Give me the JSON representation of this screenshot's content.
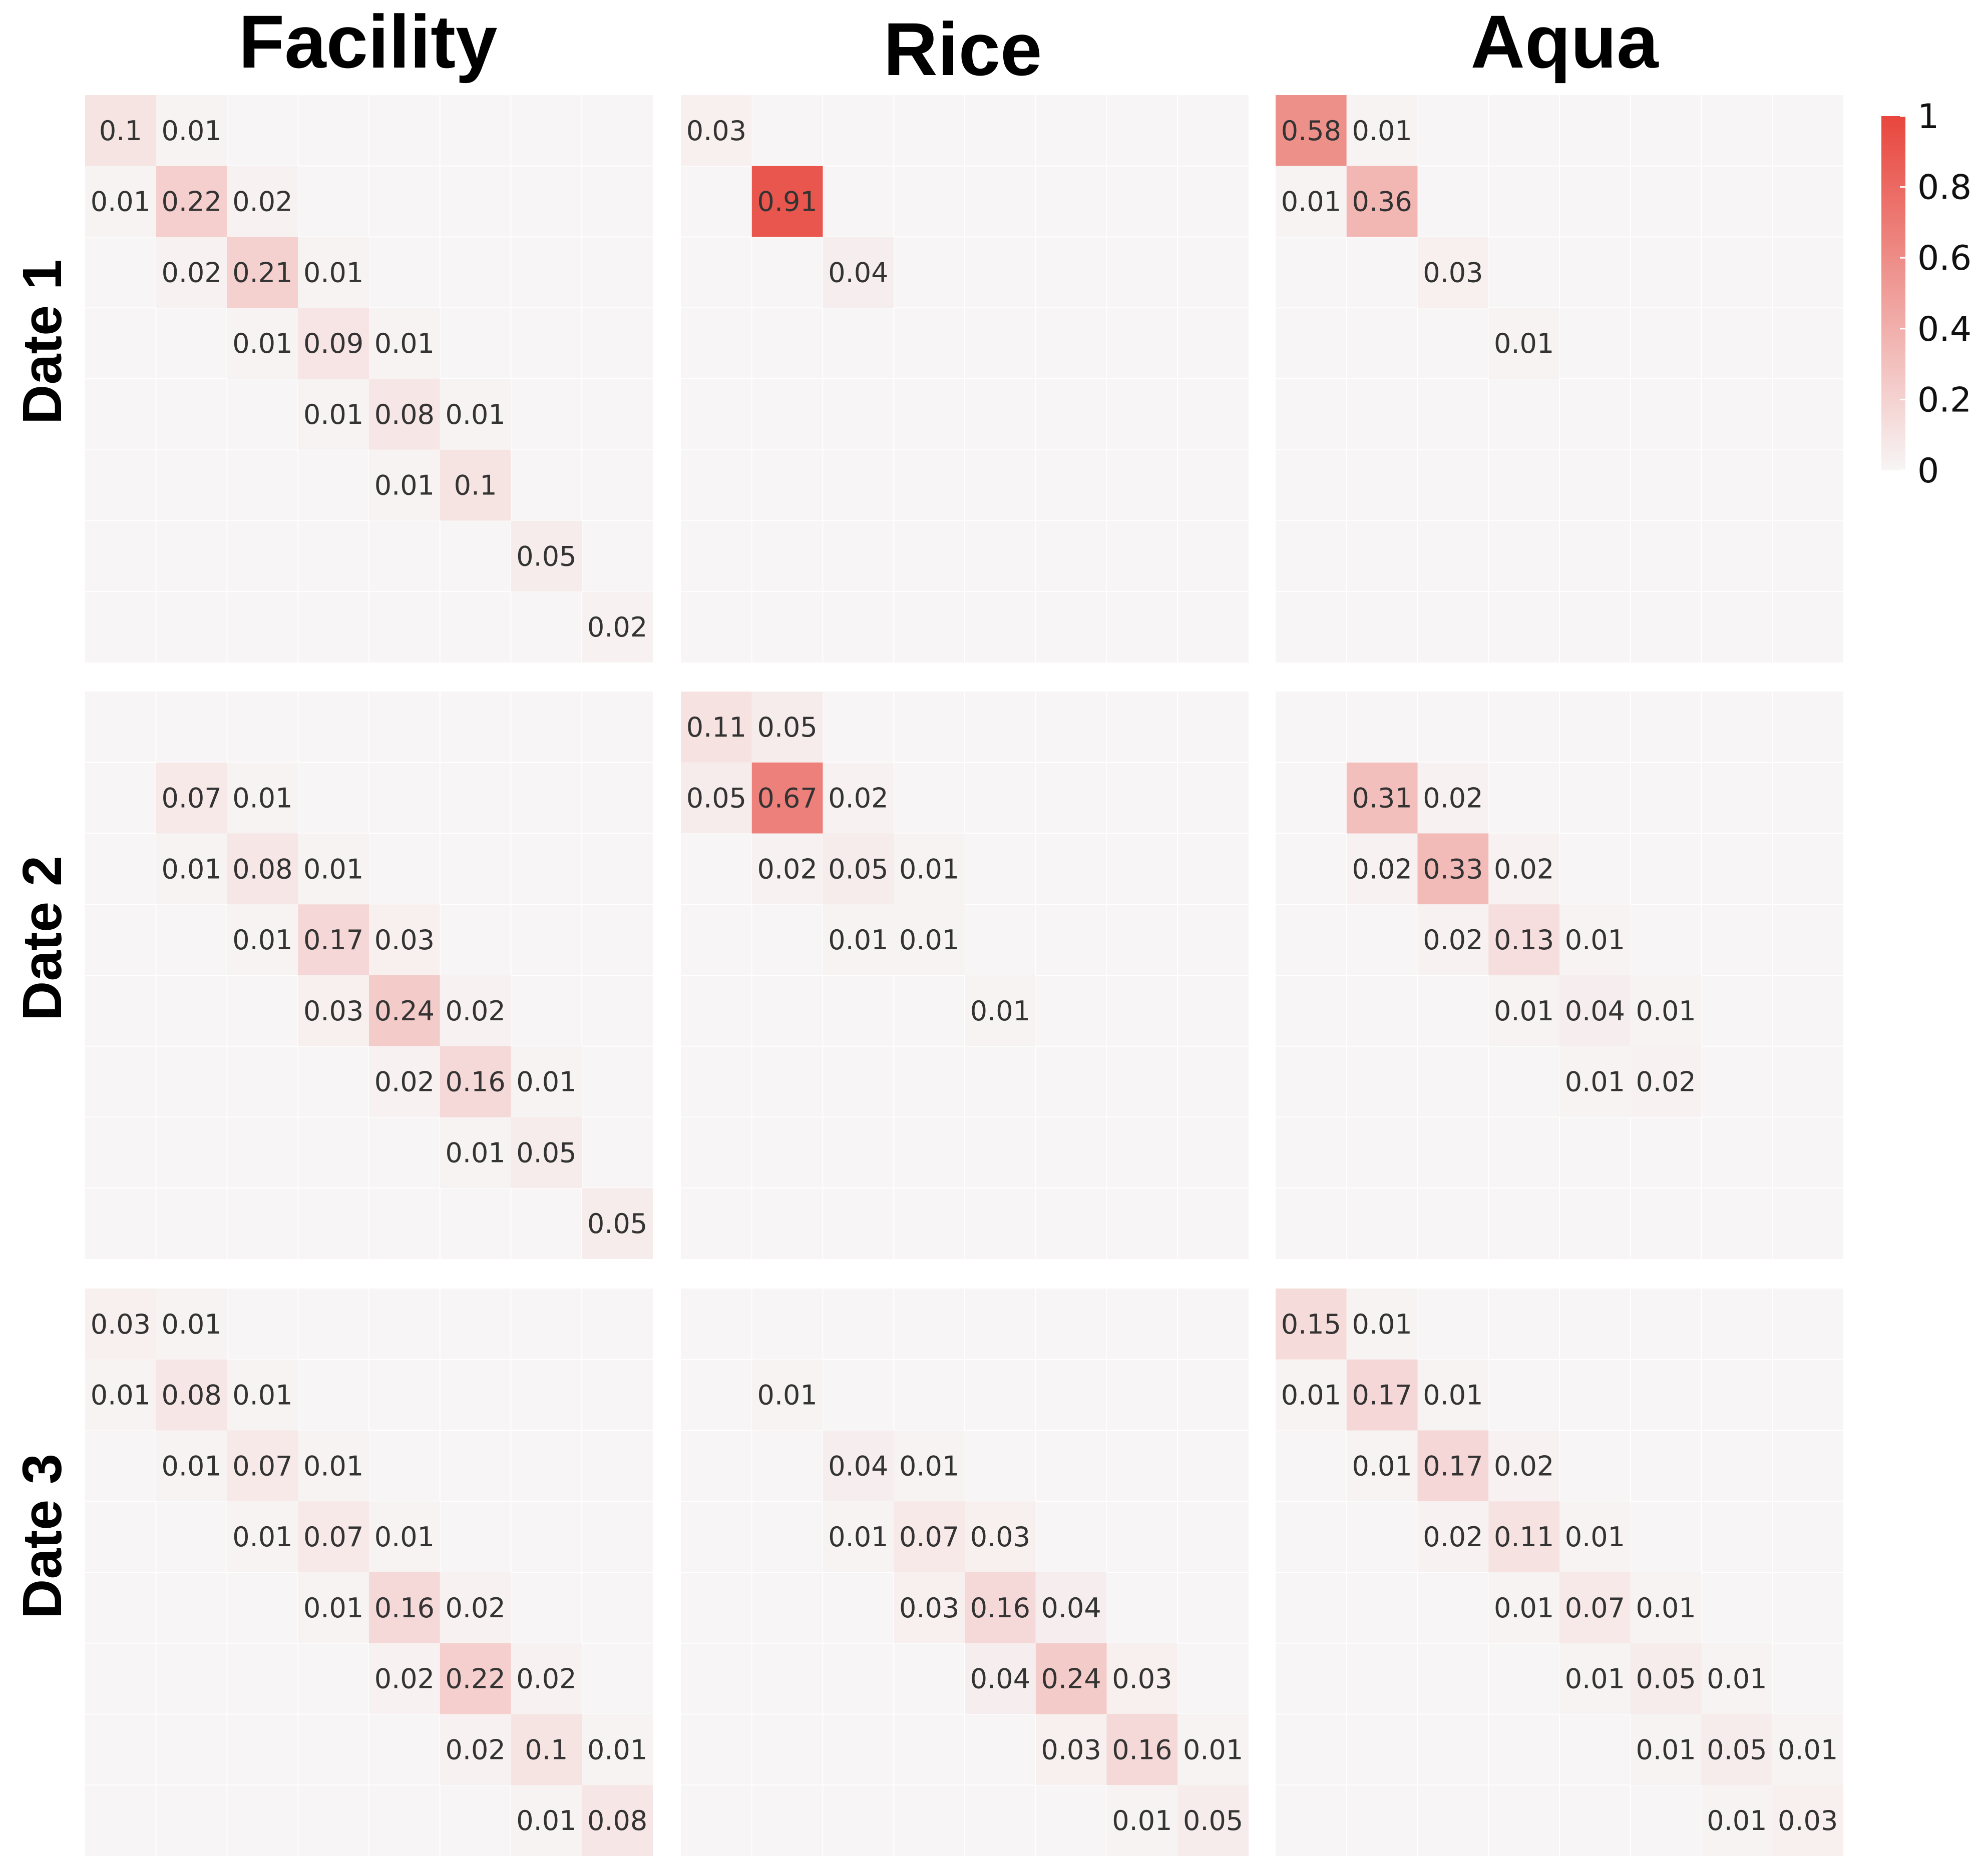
{
  "chart_data": {
    "type": "heatmap",
    "col_titles": [
      "Facility",
      "Rice",
      "Aqua"
    ],
    "row_titles": [
      "Date 1",
      "Date 2",
      "Date 3"
    ],
    "grid_size": 8,
    "color_scale": {
      "min": 0,
      "max": 1,
      "low_color": "#f7f5f5",
      "high_color": "#e8463d"
    },
    "legend": {
      "ticks": [
        "1",
        "0.8",
        "0.6",
        "0.4",
        "0.2",
        "0"
      ],
      "values": [
        1,
        0.8,
        0.6,
        0.4,
        0.2,
        0
      ],
      "placement": "top-right"
    },
    "panels": [
      {
        "row": 0,
        "col": 0,
        "cells": [
          {
            "r": 0,
            "c": 0,
            "v": 0.1,
            "label": "0.1"
          },
          {
            "r": 0,
            "c": 1,
            "v": 0.01,
            "label": "0.01"
          },
          {
            "r": 1,
            "c": 0,
            "v": 0.01,
            "label": "0.01"
          },
          {
            "r": 1,
            "c": 1,
            "v": 0.22,
            "label": "0.22"
          },
          {
            "r": 1,
            "c": 2,
            "v": 0.02,
            "label": "0.02"
          },
          {
            "r": 2,
            "c": 1,
            "v": 0.02,
            "label": "0.02"
          },
          {
            "r": 2,
            "c": 2,
            "v": 0.21,
            "label": "0.21"
          },
          {
            "r": 2,
            "c": 3,
            "v": 0.01,
            "label": "0.01"
          },
          {
            "r": 3,
            "c": 2,
            "v": 0.01,
            "label": "0.01"
          },
          {
            "r": 3,
            "c": 3,
            "v": 0.09,
            "label": "0.09"
          },
          {
            "r": 3,
            "c": 4,
            "v": 0.01,
            "label": "0.01"
          },
          {
            "r": 4,
            "c": 3,
            "v": 0.01,
            "label": "0.01"
          },
          {
            "r": 4,
            "c": 4,
            "v": 0.08,
            "label": "0.08"
          },
          {
            "r": 4,
            "c": 5,
            "v": 0.01,
            "label": "0.01"
          },
          {
            "r": 5,
            "c": 4,
            "v": 0.01,
            "label": "0.01"
          },
          {
            "r": 5,
            "c": 5,
            "v": 0.1,
            "label": "0.1"
          },
          {
            "r": 6,
            "c": 6,
            "v": 0.05,
            "label": "0.05"
          },
          {
            "r": 7,
            "c": 7,
            "v": 0.02,
            "label": "0.02"
          }
        ]
      },
      {
        "row": 0,
        "col": 1,
        "cells": [
          {
            "r": 0,
            "c": 0,
            "v": 0.03,
            "label": "0.03"
          },
          {
            "r": 1,
            "c": 1,
            "v": 0.91,
            "label": "0.91"
          },
          {
            "r": 2,
            "c": 2,
            "v": 0.04,
            "label": "0.04"
          }
        ]
      },
      {
        "row": 0,
        "col": 2,
        "cells": [
          {
            "r": 0,
            "c": 0,
            "v": 0.58,
            "label": "0.58"
          },
          {
            "r": 0,
            "c": 1,
            "v": 0.01,
            "label": "0.01"
          },
          {
            "r": 1,
            "c": 0,
            "v": 0.01,
            "label": "0.01"
          },
          {
            "r": 1,
            "c": 1,
            "v": 0.36,
            "label": "0.36"
          },
          {
            "r": 2,
            "c": 2,
            "v": 0.03,
            "label": "0.03"
          },
          {
            "r": 3,
            "c": 3,
            "v": 0.01,
            "label": "0.01"
          }
        ]
      },
      {
        "row": 1,
        "col": 0,
        "cells": [
          {
            "r": 1,
            "c": 1,
            "v": 0.07,
            "label": "0.07"
          },
          {
            "r": 1,
            "c": 2,
            "v": 0.01,
            "label": "0.01"
          },
          {
            "r": 2,
            "c": 1,
            "v": 0.01,
            "label": "0.01"
          },
          {
            "r": 2,
            "c": 2,
            "v": 0.08,
            "label": "0.08"
          },
          {
            "r": 2,
            "c": 3,
            "v": 0.01,
            "label": "0.01"
          },
          {
            "r": 3,
            "c": 2,
            "v": 0.01,
            "label": "0.01"
          },
          {
            "r": 3,
            "c": 3,
            "v": 0.17,
            "label": "0.17"
          },
          {
            "r": 3,
            "c": 4,
            "v": 0.03,
            "label": "0.03"
          },
          {
            "r": 4,
            "c": 3,
            "v": 0.03,
            "label": "0.03"
          },
          {
            "r": 4,
            "c": 4,
            "v": 0.24,
            "label": "0.24"
          },
          {
            "r": 4,
            "c": 5,
            "v": 0.02,
            "label": "0.02"
          },
          {
            "r": 5,
            "c": 4,
            "v": 0.02,
            "label": "0.02"
          },
          {
            "r": 5,
            "c": 5,
            "v": 0.16,
            "label": "0.16"
          },
          {
            "r": 5,
            "c": 6,
            "v": 0.01,
            "label": "0.01"
          },
          {
            "r": 6,
            "c": 5,
            "v": 0.01,
            "label": "0.01"
          },
          {
            "r": 6,
            "c": 6,
            "v": 0.05,
            "label": "0.05"
          },
          {
            "r": 7,
            "c": 7,
            "v": 0.05,
            "label": "0.05"
          }
        ]
      },
      {
        "row": 1,
        "col": 1,
        "cells": [
          {
            "r": 0,
            "c": 0,
            "v": 0.11,
            "label": "0.11"
          },
          {
            "r": 0,
            "c": 1,
            "v": 0.05,
            "label": "0.05"
          },
          {
            "r": 1,
            "c": 0,
            "v": 0.05,
            "label": "0.05"
          },
          {
            "r": 1,
            "c": 1,
            "v": 0.67,
            "label": "0.67"
          },
          {
            "r": 1,
            "c": 2,
            "v": 0.02,
            "label": "0.02"
          },
          {
            "r": 2,
            "c": 1,
            "v": 0.02,
            "label": "0.02"
          },
          {
            "r": 2,
            "c": 2,
            "v": 0.05,
            "label": "0.05"
          },
          {
            "r": 2,
            "c": 3,
            "v": 0.01,
            "label": "0.01"
          },
          {
            "r": 3,
            "c": 2,
            "v": 0.01,
            "label": "0.01"
          },
          {
            "r": 3,
            "c": 3,
            "v": 0.01,
            "label": "0.01"
          },
          {
            "r": 4,
            "c": 4,
            "v": 0.01,
            "label": "0.01"
          }
        ]
      },
      {
        "row": 1,
        "col": 2,
        "cells": [
          {
            "r": 1,
            "c": 1,
            "v": 0.31,
            "label": "0.31"
          },
          {
            "r": 1,
            "c": 2,
            "v": 0.02,
            "label": "0.02"
          },
          {
            "r": 2,
            "c": 1,
            "v": 0.02,
            "label": "0.02"
          },
          {
            "r": 2,
            "c": 2,
            "v": 0.33,
            "label": "0.33"
          },
          {
            "r": 2,
            "c": 3,
            "v": 0.02,
            "label": "0.02"
          },
          {
            "r": 3,
            "c": 2,
            "v": 0.02,
            "label": "0.02"
          },
          {
            "r": 3,
            "c": 3,
            "v": 0.13,
            "label": "0.13"
          },
          {
            "r": 3,
            "c": 4,
            "v": 0.01,
            "label": "0.01"
          },
          {
            "r": 4,
            "c": 3,
            "v": 0.01,
            "label": "0.01"
          },
          {
            "r": 4,
            "c": 4,
            "v": 0.04,
            "label": "0.04"
          },
          {
            "r": 4,
            "c": 5,
            "v": 0.01,
            "label": "0.01"
          },
          {
            "r": 5,
            "c": 4,
            "v": 0.01,
            "label": "0.01"
          },
          {
            "r": 5,
            "c": 5,
            "v": 0.02,
            "label": "0.02"
          }
        ]
      },
      {
        "row": 2,
        "col": 0,
        "cells": [
          {
            "r": 0,
            "c": 0,
            "v": 0.03,
            "label": "0.03"
          },
          {
            "r": 0,
            "c": 1,
            "v": 0.01,
            "label": "0.01"
          },
          {
            "r": 1,
            "c": 0,
            "v": 0.01,
            "label": "0.01"
          },
          {
            "r": 1,
            "c": 1,
            "v": 0.08,
            "label": "0.08"
          },
          {
            "r": 1,
            "c": 2,
            "v": 0.01,
            "label": "0.01"
          },
          {
            "r": 2,
            "c": 1,
            "v": 0.01,
            "label": "0.01"
          },
          {
            "r": 2,
            "c": 2,
            "v": 0.07,
            "label": "0.07"
          },
          {
            "r": 2,
            "c": 3,
            "v": 0.01,
            "label": "0.01"
          },
          {
            "r": 3,
            "c": 2,
            "v": 0.01,
            "label": "0.01"
          },
          {
            "r": 3,
            "c": 3,
            "v": 0.07,
            "label": "0.07"
          },
          {
            "r": 3,
            "c": 4,
            "v": 0.01,
            "label": "0.01"
          },
          {
            "r": 4,
            "c": 3,
            "v": 0.01,
            "label": "0.01"
          },
          {
            "r": 4,
            "c": 4,
            "v": 0.16,
            "label": "0.16"
          },
          {
            "r": 4,
            "c": 5,
            "v": 0.02,
            "label": "0.02"
          },
          {
            "r": 5,
            "c": 4,
            "v": 0.02,
            "label": "0.02"
          },
          {
            "r": 5,
            "c": 5,
            "v": 0.22,
            "label": "0.22"
          },
          {
            "r": 5,
            "c": 6,
            "v": 0.02,
            "label": "0.02"
          },
          {
            "r": 6,
            "c": 5,
            "v": 0.02,
            "label": "0.02"
          },
          {
            "r": 6,
            "c": 6,
            "v": 0.1,
            "label": "0.1"
          },
          {
            "r": 6,
            "c": 7,
            "v": 0.01,
            "label": "0.01"
          },
          {
            "r": 7,
            "c": 6,
            "v": 0.01,
            "label": "0.01"
          },
          {
            "r": 7,
            "c": 7,
            "v": 0.08,
            "label": "0.08"
          }
        ]
      },
      {
        "row": 2,
        "col": 1,
        "cells": [
          {
            "r": 1,
            "c": 1,
            "v": 0.01,
            "label": "0.01"
          },
          {
            "r": 2,
            "c": 2,
            "v": 0.04,
            "label": "0.04"
          },
          {
            "r": 2,
            "c": 3,
            "v": 0.01,
            "label": "0.01"
          },
          {
            "r": 3,
            "c": 2,
            "v": 0.01,
            "label": "0.01"
          },
          {
            "r": 3,
            "c": 3,
            "v": 0.07,
            "label": "0.07"
          },
          {
            "r": 3,
            "c": 4,
            "v": 0.03,
            "label": "0.03"
          },
          {
            "r": 4,
            "c": 3,
            "v": 0.03,
            "label": "0.03"
          },
          {
            "r": 4,
            "c": 4,
            "v": 0.16,
            "label": "0.16"
          },
          {
            "r": 4,
            "c": 5,
            "v": 0.04,
            "label": "0.04"
          },
          {
            "r": 5,
            "c": 4,
            "v": 0.04,
            "label": "0.04"
          },
          {
            "r": 5,
            "c": 5,
            "v": 0.24,
            "label": "0.24"
          },
          {
            "r": 5,
            "c": 6,
            "v": 0.03,
            "label": "0.03"
          },
          {
            "r": 6,
            "c": 5,
            "v": 0.03,
            "label": "0.03"
          },
          {
            "r": 6,
            "c": 6,
            "v": 0.16,
            "label": "0.16"
          },
          {
            "r": 6,
            "c": 7,
            "v": 0.01,
            "label": "0.01"
          },
          {
            "r": 7,
            "c": 6,
            "v": 0.01,
            "label": "0.01"
          },
          {
            "r": 7,
            "c": 7,
            "v": 0.05,
            "label": "0.05"
          }
        ]
      },
      {
        "row": 2,
        "col": 2,
        "cells": [
          {
            "r": 0,
            "c": 0,
            "v": 0.15,
            "label": "0.15"
          },
          {
            "r": 0,
            "c": 1,
            "v": 0.01,
            "label": "0.01"
          },
          {
            "r": 1,
            "c": 0,
            "v": 0.01,
            "label": "0.01"
          },
          {
            "r": 1,
            "c": 1,
            "v": 0.17,
            "label": "0.17"
          },
          {
            "r": 1,
            "c": 2,
            "v": 0.01,
            "label": "0.01"
          },
          {
            "r": 2,
            "c": 1,
            "v": 0.01,
            "label": "0.01"
          },
          {
            "r": 2,
            "c": 2,
            "v": 0.17,
            "label": "0.17"
          },
          {
            "r": 2,
            "c": 3,
            "v": 0.02,
            "label": "0.02"
          },
          {
            "r": 3,
            "c": 2,
            "v": 0.02,
            "label": "0.02"
          },
          {
            "r": 3,
            "c": 3,
            "v": 0.11,
            "label": "0.11"
          },
          {
            "r": 3,
            "c": 4,
            "v": 0.01,
            "label": "0.01"
          },
          {
            "r": 4,
            "c": 3,
            "v": 0.01,
            "label": "0.01"
          },
          {
            "r": 4,
            "c": 4,
            "v": 0.07,
            "label": "0.07"
          },
          {
            "r": 4,
            "c": 5,
            "v": 0.01,
            "label": "0.01"
          },
          {
            "r": 5,
            "c": 4,
            "v": 0.01,
            "label": "0.01"
          },
          {
            "r": 5,
            "c": 5,
            "v": 0.05,
            "label": "0.05"
          },
          {
            "r": 5,
            "c": 6,
            "v": 0.01,
            "label": "0.01"
          },
          {
            "r": 6,
            "c": 5,
            "v": 0.01,
            "label": "0.01"
          },
          {
            "r": 6,
            "c": 6,
            "v": 0.05,
            "label": "0.05"
          },
          {
            "r": 6,
            "c": 7,
            "v": 0.01,
            "label": "0.01"
          },
          {
            "r": 7,
            "c": 6,
            "v": 0.01,
            "label": "0.01"
          },
          {
            "r": 7,
            "c": 7,
            "v": 0.03,
            "label": "0.03"
          }
        ]
      }
    ]
  }
}
